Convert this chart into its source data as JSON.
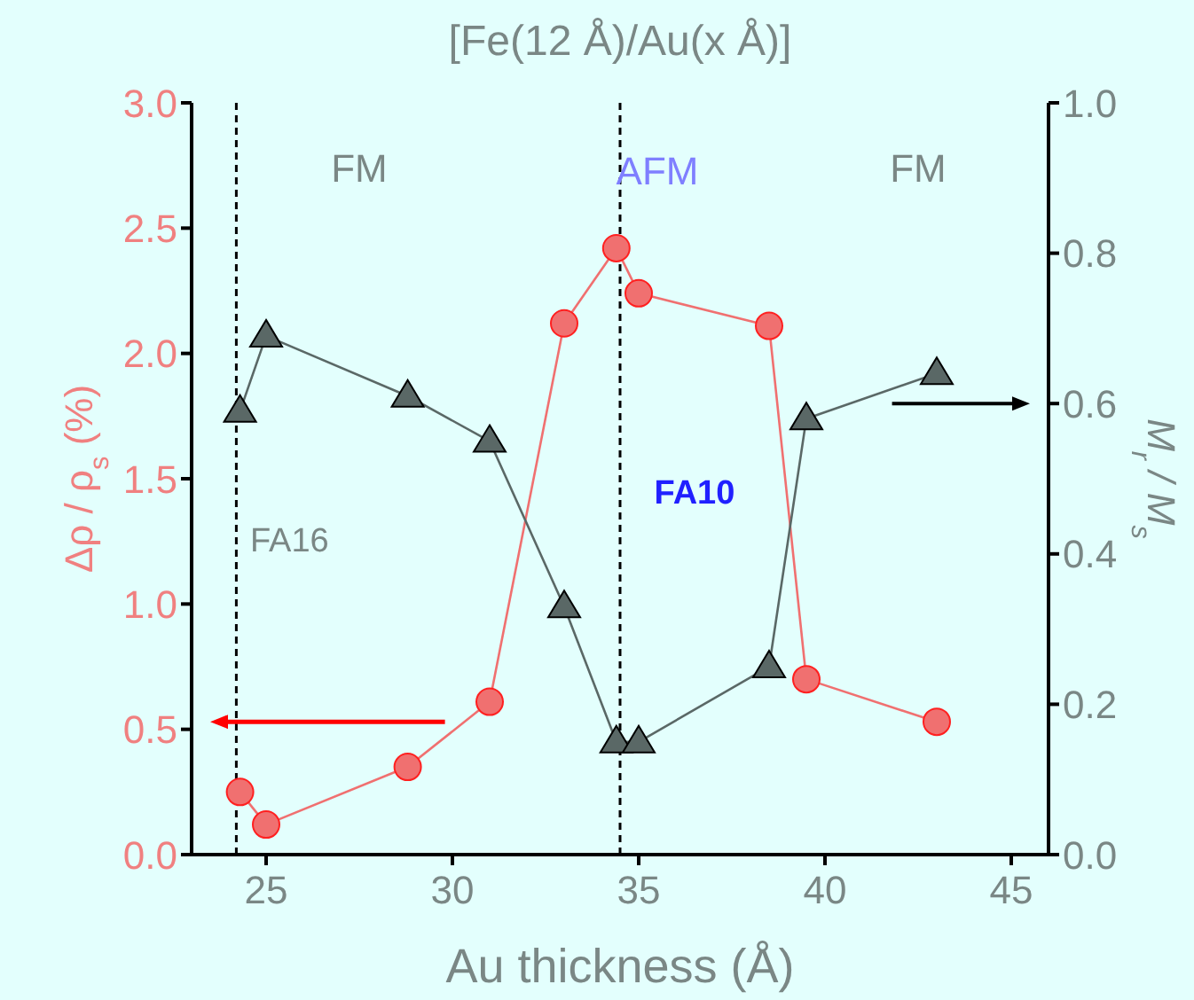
{
  "chart_data": {
    "type": "line",
    "title": "[Fe(12 Å)/Au(x Å)]",
    "xlabel": "Au thickness (Å)",
    "ylabel": "Δρ / ρ$_{s}$ (%)",
    "y2label": "M$_{r}$ / M$_{s}$",
    "x": [
      24.3,
      25.0,
      28.8,
      31.0,
      33.0,
      34.4,
      35.0,
      38.5,
      39.5,
      43.0
    ],
    "series": [
      {
        "color": "#f07070",
        "marker": "circle",
        "values": [
          0.25,
          0.12,
          0.35,
          0.61,
          2.12,
          2.42,
          2.24,
          2.11,
          0.7,
          0.53
        ]
      },
      {
        "color": "#5a6866",
        "marker": "triangle",
        "axis": "y2",
        "values": [
          0.59,
          0.69,
          0.61,
          0.55,
          0.33,
          0.15,
          0.15,
          0.25,
          0.58,
          0.64
        ]
      }
    ],
    "xlim": [
      23,
      46
    ],
    "xticks": [
      25,
      30,
      35,
      40,
      45
    ],
    "ylim": [
      0,
      3
    ],
    "yticks": [
      {
        "value": 0,
        "label": "0.0"
      },
      0.5,
      {
        "value": 1,
        "label": "1.0"
      },
      1.5,
      {
        "value": 2,
        "label": "2.0"
      },
      2.5,
      {
        "value": 3,
        "label": "3.0"
      }
    ],
    "y2lim": [
      0,
      1
    ],
    "y2ticks": [
      {
        "value": 0,
        "label": "0.0"
      },
      0.2,
      0.4,
      0.6,
      0.8,
      {
        "value": 1,
        "label": "1.0"
      }
    ],
    "ref_lines": [
      {
        "axis": "x",
        "value": 24.2,
        "line_style": "dashed",
        "color": "#000000",
        "label": "FA16"
      },
      {
        "axis": "x",
        "value": 34.5,
        "line_style": "dashed",
        "color": "#000000",
        "label": "FA10"
      }
    ],
    "annotations": [
      "FM",
      "AFM",
      "FM"
    ],
    "grid": false,
    "legend": false
  }
}
